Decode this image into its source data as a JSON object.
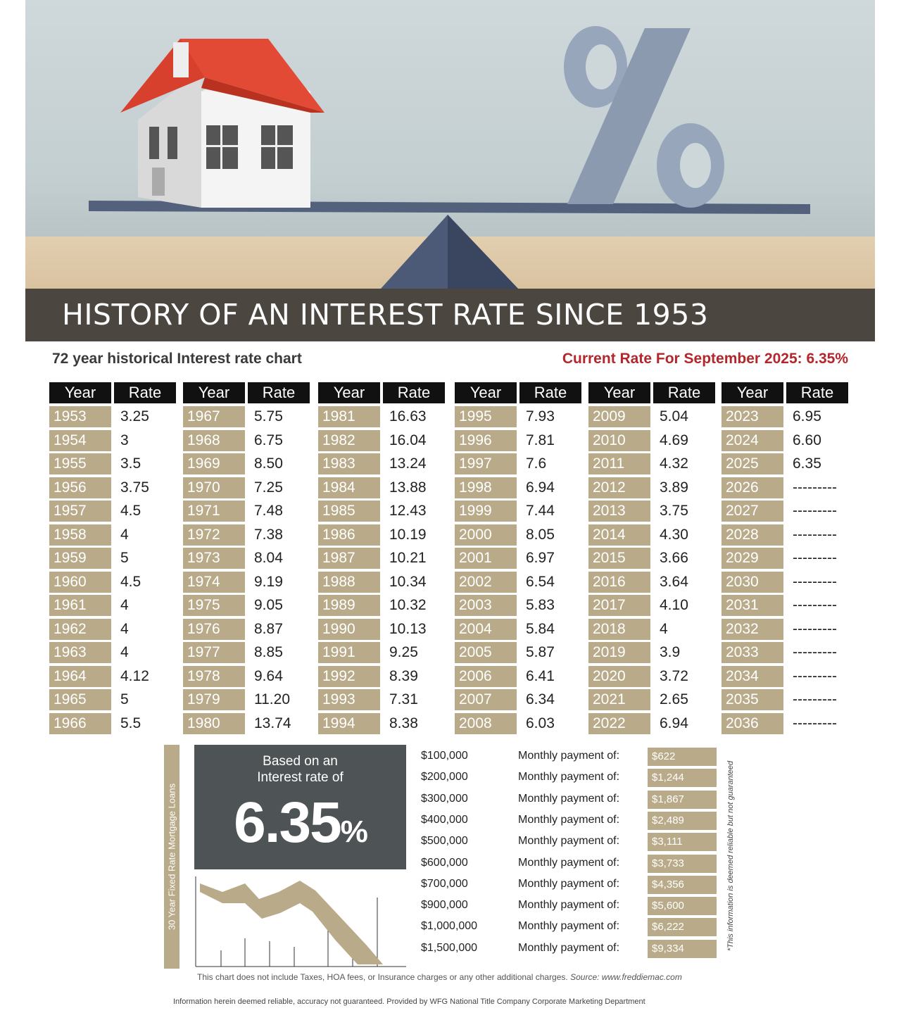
{
  "title": "HISTORY OF AN INTEREST RATE SINCE 1953",
  "subtitle_left": "72 year historical Interest rate chart",
  "subtitle_right": "Current Rate For September 2025: 6.35%",
  "table_headers": {
    "year": "Year",
    "rate": "Rate"
  },
  "colors": {
    "accent_tan": "#b9aa89",
    "dark_bar": "#4b463f",
    "red": "#b3262b",
    "box_gray": "#4e5455"
  },
  "chart_data": {
    "type": "table",
    "columns": [
      "Year",
      "Rate"
    ],
    "rows": [
      [
        "1953",
        "3.25"
      ],
      [
        "1954",
        "3"
      ],
      [
        "1955",
        "3.5"
      ],
      [
        "1956",
        "3.75"
      ],
      [
        "1957",
        "4.5"
      ],
      [
        "1958",
        "4"
      ],
      [
        "1959",
        "5"
      ],
      [
        "1960",
        "4.5"
      ],
      [
        "1961",
        "4"
      ],
      [
        "1962",
        "4"
      ],
      [
        "1963",
        "4"
      ],
      [
        "1964",
        "4.12"
      ],
      [
        "1965",
        "5"
      ],
      [
        "1966",
        "5.5"
      ],
      [
        "1967",
        "5.75"
      ],
      [
        "1968",
        "6.75"
      ],
      [
        "1969",
        "8.50"
      ],
      [
        "1970",
        "7.25"
      ],
      [
        "1971",
        "7.48"
      ],
      [
        "1972",
        "7.38"
      ],
      [
        "1973",
        "8.04"
      ],
      [
        "1974",
        "9.19"
      ],
      [
        "1975",
        "9.05"
      ],
      [
        "1976",
        "8.87"
      ],
      [
        "1977",
        "8.85"
      ],
      [
        "1978",
        "9.64"
      ],
      [
        "1979",
        "11.20"
      ],
      [
        "1980",
        "13.74"
      ],
      [
        "1981",
        "16.63"
      ],
      [
        "1982",
        "16.04"
      ],
      [
        "1983",
        "13.24"
      ],
      [
        "1984",
        "13.88"
      ],
      [
        "1985",
        "12.43"
      ],
      [
        "1986",
        "10.19"
      ],
      [
        "1987",
        "10.21"
      ],
      [
        "1988",
        "10.34"
      ],
      [
        "1989",
        "10.32"
      ],
      [
        "1990",
        "10.13"
      ],
      [
        "1991",
        "9.25"
      ],
      [
        "1992",
        "8.39"
      ],
      [
        "1993",
        "7.31"
      ],
      [
        "1994",
        "8.38"
      ],
      [
        "1995",
        "7.93"
      ],
      [
        "1996",
        "7.81"
      ],
      [
        "1997",
        "7.6"
      ],
      [
        "1998",
        "6.94"
      ],
      [
        "1999",
        "7.44"
      ],
      [
        "2000",
        "8.05"
      ],
      [
        "2001",
        "6.97"
      ],
      [
        "2002",
        "6.54"
      ],
      [
        "2003",
        "5.83"
      ],
      [
        "2004",
        "5.84"
      ],
      [
        "2005",
        "5.87"
      ],
      [
        "2006",
        "6.41"
      ],
      [
        "2007",
        "6.34"
      ],
      [
        "2008",
        "6.03"
      ],
      [
        "2009",
        "5.04"
      ],
      [
        "2010",
        "4.69"
      ],
      [
        "2011",
        "4.32"
      ],
      [
        "2012",
        "3.89"
      ],
      [
        "2013",
        "3.75"
      ],
      [
        "2014",
        "4.30"
      ],
      [
        "2015",
        "3.66"
      ],
      [
        "2016",
        "3.64"
      ],
      [
        "2017",
        "4.10"
      ],
      [
        "2018",
        "4"
      ],
      [
        "2019",
        "3.9"
      ],
      [
        "2020",
        "3.72"
      ],
      [
        "2021",
        "2.65"
      ],
      [
        "2022",
        "6.94"
      ],
      [
        "2023",
        "6.95"
      ],
      [
        "2024",
        "6.60"
      ],
      [
        "2025",
        "6.35"
      ],
      [
        "2026",
        "---------"
      ],
      [
        "2027",
        "---------"
      ],
      [
        "2028",
        "---------"
      ],
      [
        "2029",
        "---------"
      ],
      [
        "2030",
        "---------"
      ],
      [
        "2031",
        "---------"
      ],
      [
        "2032",
        "---------"
      ],
      [
        "2033",
        "---------"
      ],
      [
        "2034",
        "---------"
      ],
      [
        "2035",
        "---------"
      ],
      [
        "2036",
        "---------"
      ]
    ]
  },
  "calculator": {
    "side_label": "30 Year Fixed Rate Mortgage Loans",
    "box_line1": "Based on an",
    "box_line2": "Interest rate of",
    "box_rate": "6.35",
    "box_pct": "%",
    "payment_label": "Monthly payment of:",
    "rows": [
      {
        "amount": "$100,000",
        "payment": "$622"
      },
      {
        "amount": "$200,000",
        "payment": "$1,244"
      },
      {
        "amount": "$300,000",
        "payment": "$1,867"
      },
      {
        "amount": "$400,000",
        "payment": "$2,489"
      },
      {
        "amount": "$500,000",
        "payment": "$3,111"
      },
      {
        "amount": "$600,000",
        "payment": "$3,733"
      },
      {
        "amount": "$700,000",
        "payment": "$4,356"
      },
      {
        "amount": "$900,000",
        "payment": "$5,600"
      },
      {
        "amount": "$1,000,000",
        "payment": "$6,222"
      },
      {
        "amount": "$1,500,000",
        "payment": "$9,334"
      }
    ],
    "disclaimer_vertical": "*This information is deemed reliable but not guaranteed"
  },
  "footnote": "This chart does not include Taxes, HOA fees, or Insurance charges or any other additional charges.",
  "footnote_source": "Source: www.freddiemac.com",
  "footer": "Information herein deemed reliable, accuracy not guaranteed. Provided by WFG National Title Company Corporate Marketing Department"
}
